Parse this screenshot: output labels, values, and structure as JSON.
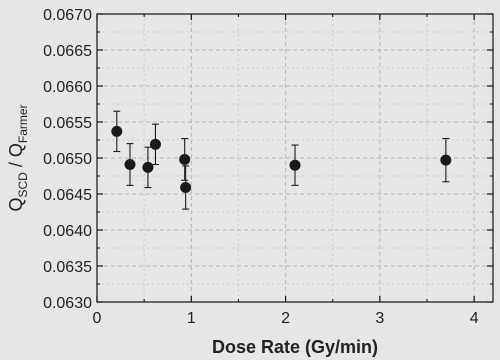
{
  "chart_data": {
    "type": "scatter",
    "xlabel": "Dose Rate (Gy/min)",
    "ylabel": {
      "q1": "Q",
      "sub1": "SCD",
      "sep": " / ",
      "q2": "Q",
      "sub2": "Farmer"
    },
    "xlim": [
      0,
      4.2
    ],
    "ylim": [
      0.063,
      0.067
    ],
    "x_ticks": [
      0,
      1,
      2,
      3,
      4
    ],
    "x_tick_labels": [
      "0",
      "1",
      "2",
      "3",
      "4"
    ],
    "y_ticks": [
      0.063,
      0.0635,
      0.064,
      0.0645,
      0.065,
      0.0655,
      0.066,
      0.0665,
      0.067
    ],
    "y_tick_labels": [
      "0.0630",
      "0.0635",
      "0.0640",
      "0.0645",
      "0.0650",
      "0.0655",
      "0.0660",
      "0.0665",
      "0.0670"
    ],
    "grid": true,
    "legend": false,
    "series": [
      {
        "x": [
          0.21,
          0.35,
          0.54,
          0.62,
          0.93,
          0.94,
          2.1,
          3.7
        ],
        "y": [
          0.06537,
          0.06491,
          0.06487,
          0.06519,
          0.06498,
          0.06459,
          0.0649,
          0.06497
        ],
        "err": [
          0.00028,
          0.00029,
          0.00028,
          0.00028,
          0.00029,
          0.0003,
          0.00028,
          0.0003
        ]
      }
    ],
    "colors": {
      "background": "#e6e6e6",
      "marker": "#1a1a1a",
      "grid_major": "#b4b4b4",
      "grid_minor": "#c8c8c8"
    }
  }
}
